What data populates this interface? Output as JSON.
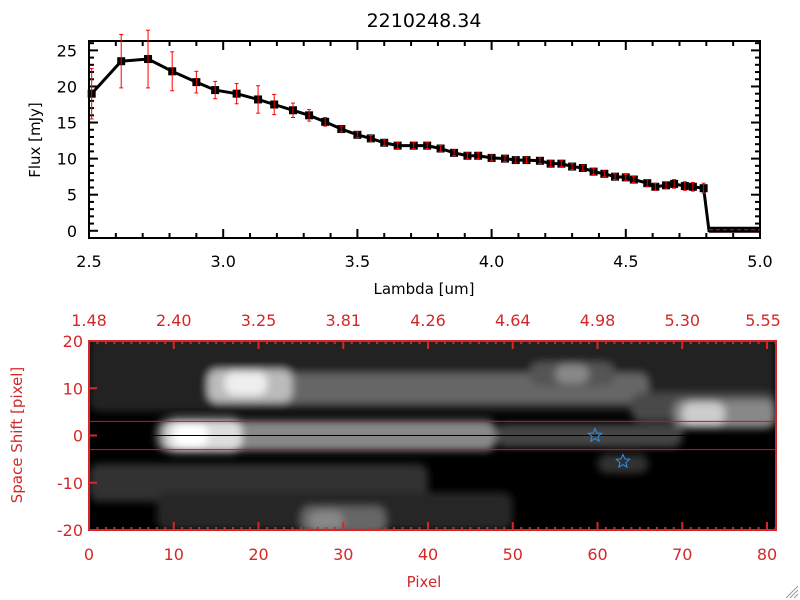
{
  "chart_data": [
    {
      "type": "line",
      "title": "2210248.34",
      "xlabel": "Lambda [um]",
      "ylabel": "Flux [mJy]",
      "xlim": [
        2.5,
        5.0
      ],
      "ylim": [
        -1,
        26.3
      ],
      "xticks": [
        "2.5",
        "3.0",
        "3.5",
        "4.0",
        "4.5",
        "5.0"
      ],
      "xtick_values": [
        2.5,
        3.0,
        3.5,
        4.0,
        4.5,
        5.0
      ],
      "yticks": [
        "0",
        "5",
        "10",
        "15",
        "20",
        "25"
      ],
      "ytick_values": [
        0,
        5,
        10,
        15,
        20,
        25
      ],
      "series_color": "#000000",
      "error_color": "#ff0000",
      "x": [
        2.51,
        2.62,
        2.72,
        2.81,
        2.9,
        2.97,
        3.05,
        3.13,
        3.19,
        3.26,
        3.32,
        3.38,
        3.44,
        3.5,
        3.55,
        3.6,
        3.65,
        3.71,
        3.76,
        3.81,
        3.86,
        3.91,
        3.95,
        4.0,
        4.05,
        4.09,
        4.13,
        4.18,
        4.22,
        4.26,
        4.3,
        4.34,
        4.38,
        4.42,
        4.46,
        4.5,
        4.53,
        4.58,
        4.61,
        4.65,
        4.68,
        4.72,
        4.75,
        4.79
      ],
      "y": [
        19.0,
        23.5,
        23.8,
        22.1,
        20.6,
        19.5,
        19.0,
        18.2,
        17.5,
        16.7,
        16.0,
        15.1,
        14.1,
        13.3,
        12.8,
        12.2,
        11.8,
        11.8,
        11.8,
        11.4,
        10.8,
        10.4,
        10.4,
        10.1,
        10.0,
        9.8,
        9.8,
        9.7,
        9.3,
        9.3,
        8.9,
        8.7,
        8.2,
        7.9,
        7.5,
        7.4,
        7.1,
        6.6,
        6.1,
        6.3,
        6.5,
        6.2,
        6.1,
        5.9
      ],
      "yerr": [
        3.5,
        3.7,
        4.0,
        2.7,
        1.5,
        1.2,
        1.4,
        1.9,
        1.4,
        1.0,
        0.8,
        0.6,
        0.4,
        0.4,
        0.4,
        0.4,
        0.4,
        0.4,
        0.4,
        0.4,
        0.4,
        0.4,
        0.4,
        0.4,
        0.4,
        0.4,
        0.4,
        0.4,
        0.4,
        0.4,
        0.4,
        0.4,
        0.4,
        0.4,
        0.4,
        0.4,
        0.4,
        0.5,
        0.5,
        0.5,
        0.6,
        0.6,
        0.6,
        0.7
      ],
      "tail_x": [
        4.81,
        5.0
      ],
      "tail_y": [
        0,
        0
      ]
    },
    {
      "type": "heatmap",
      "xlabel": "Pixel",
      "ylabel": "Space Shift [pixel]",
      "xlim": [
        0,
        81
      ],
      "ylim": [
        -20,
        20
      ],
      "xticks": [
        "0",
        "10",
        "20",
        "30",
        "40",
        "50",
        "60",
        "70",
        "80"
      ],
      "xtick_values": [
        0,
        10,
        20,
        30,
        40,
        50,
        60,
        70,
        80
      ],
      "yticks": [
        "20",
        "10",
        "0",
        "-10",
        "-20"
      ],
      "ytick_values": [
        20,
        10,
        0,
        -10,
        -20
      ],
      "top_ticks": [
        "1.48",
        "2.40",
        "3.25",
        "3.81",
        "4.26",
        "4.64",
        "4.98",
        "5.30",
        "5.55"
      ],
      "axis_color": "#d42828",
      "aperture_lines": [
        3,
        -3
      ],
      "aperture_color": "#ff0000",
      "center_line": 0,
      "markers": [
        {
          "x": 59.7,
          "y": 0
        },
        {
          "x": 63.0,
          "y": -5.5
        }
      ],
      "marker_color": "#2f8fef"
    }
  ]
}
